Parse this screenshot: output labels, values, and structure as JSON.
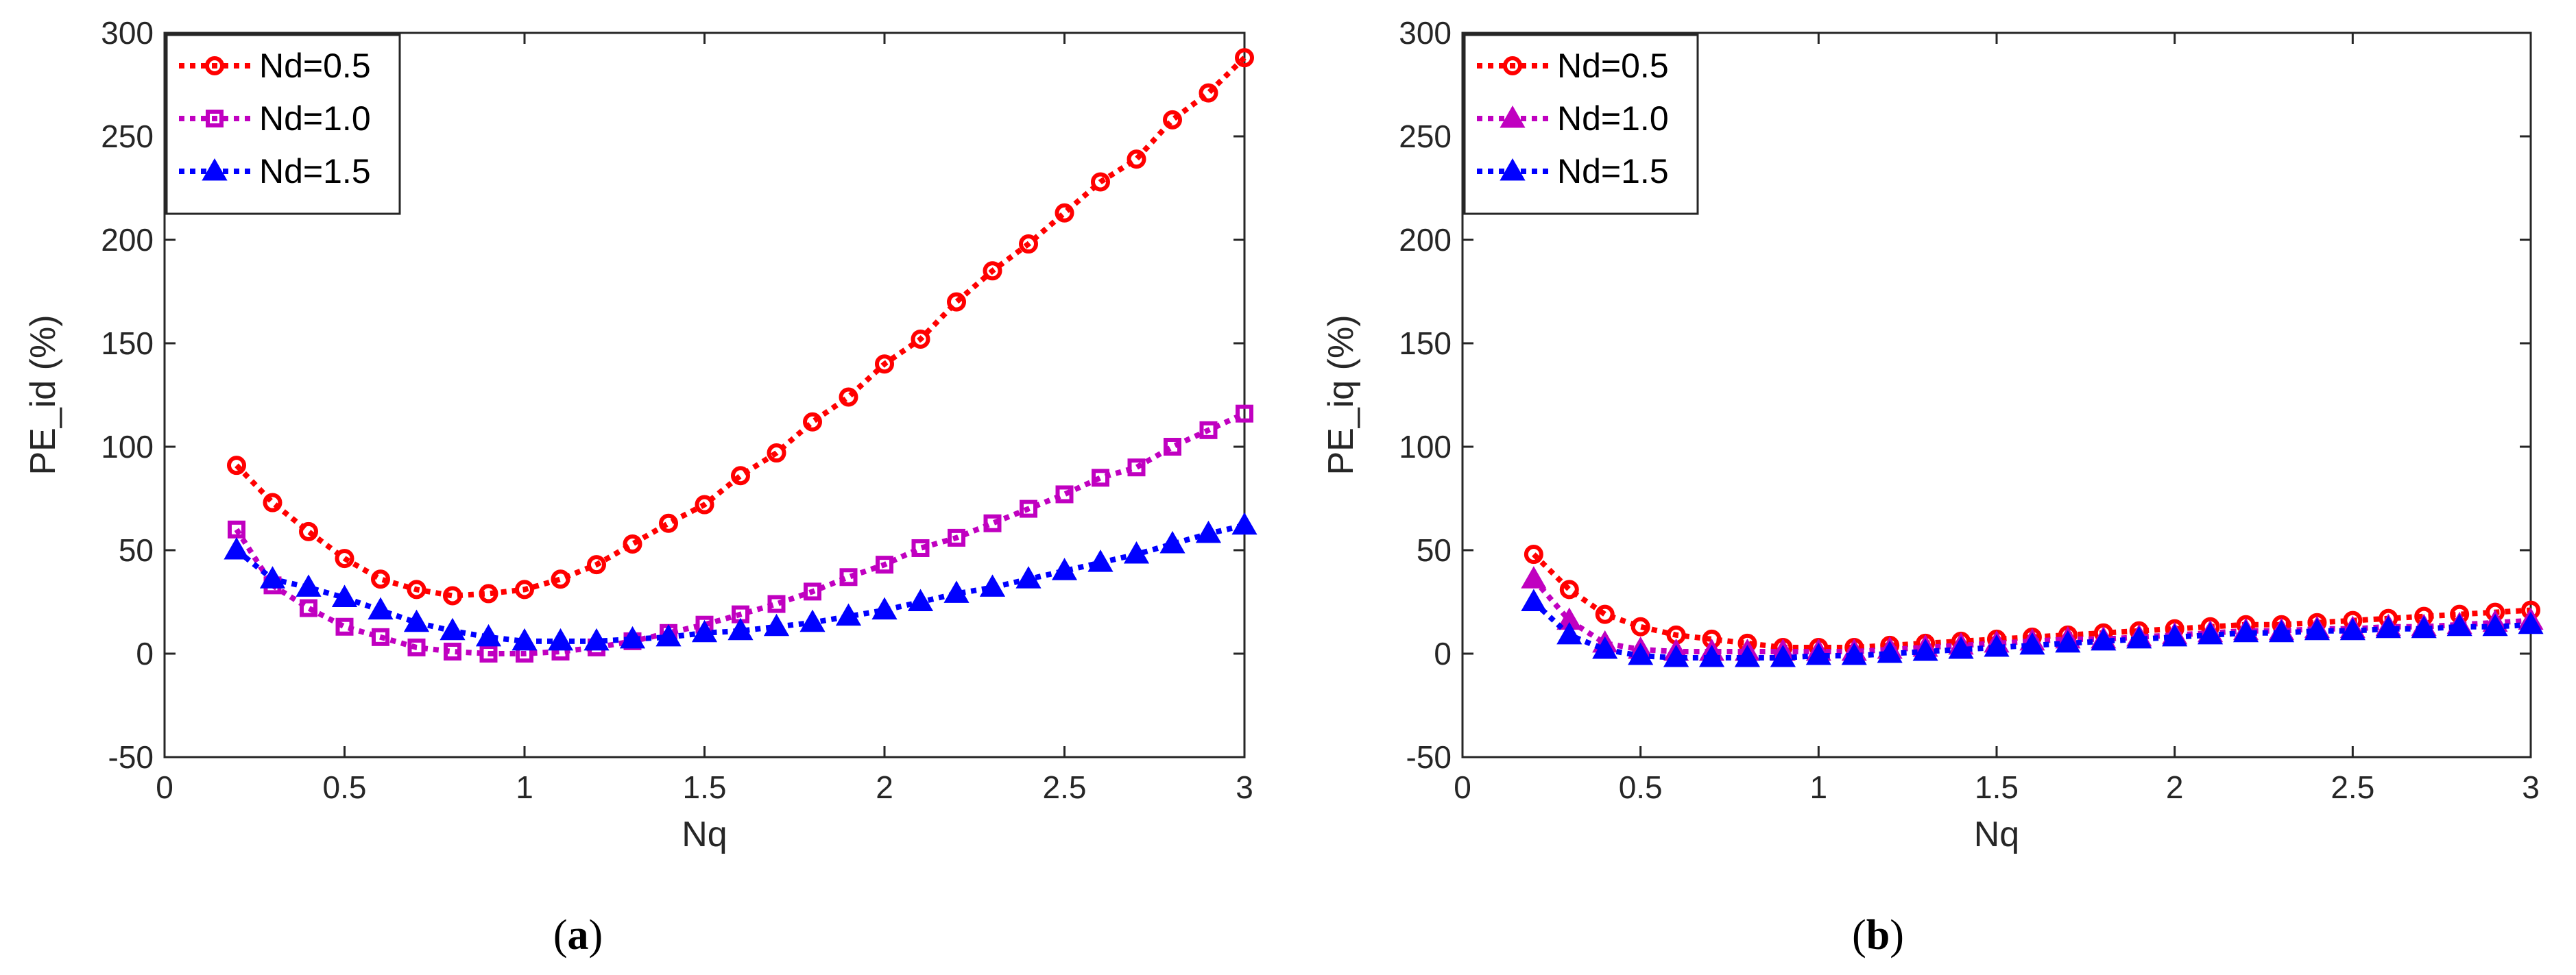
{
  "chart_data": [
    {
      "type": "line",
      "caption": "a",
      "xlabel": "Nq",
      "ylabel": "PE_id (%)",
      "xlim": [
        0,
        3
      ],
      "ylim": [
        -50,
        300
      ],
      "xticks": [
        "0",
        "0.5",
        "1",
        "1.5",
        "2",
        "2.5",
        "3"
      ],
      "yticks": [
        "-50",
        "0",
        "50",
        "100",
        "150",
        "200",
        "250",
        "300"
      ],
      "grid": false,
      "legend_position": "top-left",
      "x": [
        0.2,
        0.3,
        0.4,
        0.5,
        0.6,
        0.7,
        0.8,
        0.9,
        1.0,
        1.1,
        1.2,
        1.3,
        1.4,
        1.5,
        1.6,
        1.7,
        1.8,
        1.9,
        2.0,
        2.1,
        2.2,
        2.3,
        2.4,
        2.5,
        2.6,
        2.7,
        2.8,
        2.9,
        3.0
      ],
      "series": [
        {
          "name": "Nd=0.5",
          "color": "#ff0000",
          "marker": "circle",
          "values": [
            91,
            73,
            59,
            46,
            36,
            31,
            28,
            29,
            31,
            36,
            43,
            53,
            63,
            72,
            86,
            97,
            112,
            124,
            140,
            152,
            170,
            185,
            198,
            213,
            228,
            239,
            258,
            271,
            288
          ]
        },
        {
          "name": "Nd=1.0",
          "color": "#c000c0",
          "marker": "square",
          "values": [
            60,
            33,
            22,
            13,
            8,
            3,
            1,
            0,
            0,
            1,
            3,
            6,
            10,
            14,
            19,
            24,
            30,
            37,
            43,
            51,
            56,
            63,
            70,
            77,
            85,
            90,
            100,
            108,
            116
          ]
        },
        {
          "name": "Nd=1.5",
          "color": "#0000ff",
          "marker": "triangle",
          "values": [
            50,
            36,
            32,
            27,
            21,
            15,
            11,
            8,
            6,
            6,
            6,
            7,
            8,
            10,
            11,
            13,
            15,
            18,
            21,
            25,
            29,
            32,
            36,
            40,
            44,
            48,
            53,
            58,
            62
          ]
        }
      ]
    },
    {
      "type": "line",
      "caption": "b",
      "xlabel": "Nq",
      "ylabel": "PE_iq (%)",
      "xlim": [
        0,
        3
      ],
      "ylim": [
        -50,
        300
      ],
      "xticks": [
        "0",
        "0.5",
        "1",
        "1.5",
        "2",
        "2.5",
        "3"
      ],
      "yticks": [
        "-50",
        "0",
        "50",
        "100",
        "150",
        "200",
        "250",
        "300"
      ],
      "grid": false,
      "legend_position": "top-left",
      "x": [
        0.2,
        0.3,
        0.4,
        0.5,
        0.6,
        0.7,
        0.8,
        0.9,
        1.0,
        1.1,
        1.2,
        1.3,
        1.4,
        1.5,
        1.6,
        1.7,
        1.8,
        1.9,
        2.0,
        2.1,
        2.2,
        2.3,
        2.4,
        2.5,
        2.6,
        2.7,
        2.8,
        2.9,
        3.0
      ],
      "series": [
        {
          "name": "Nd=0.5",
          "color": "#ff0000",
          "marker": "circle",
          "values": [
            48,
            31,
            19,
            13,
            9,
            7,
            5,
            3,
            3,
            3,
            4,
            5,
            6,
            7,
            8,
            9,
            10,
            11,
            12,
            13,
            14,
            14,
            15,
            16,
            17,
            18,
            19,
            20,
            21
          ]
        },
        {
          "name": "Nd=1.0",
          "color": "#c000c0",
          "marker": "triangle",
          "values": [
            36,
            16,
            5,
            2,
            1,
            1,
            1,
            1,
            1,
            1,
            2,
            3,
            4,
            5,
            6,
            7,
            7,
            8,
            9,
            10,
            11,
            11,
            12,
            12,
            13,
            13,
            14,
            15,
            16
          ]
        },
        {
          "name": "Nd=1.5",
          "color": "#0000ff",
          "marker": "triangle",
          "values": [
            25,
            9,
            2,
            -1,
            -2,
            -2,
            -2,
            -2,
            -1,
            -1,
            0,
            1,
            2,
            3,
            4,
            5,
            6,
            7,
            8,
            9,
            10,
            10,
            11,
            11,
            12,
            12,
            13,
            13,
            14
          ]
        }
      ]
    }
  ]
}
